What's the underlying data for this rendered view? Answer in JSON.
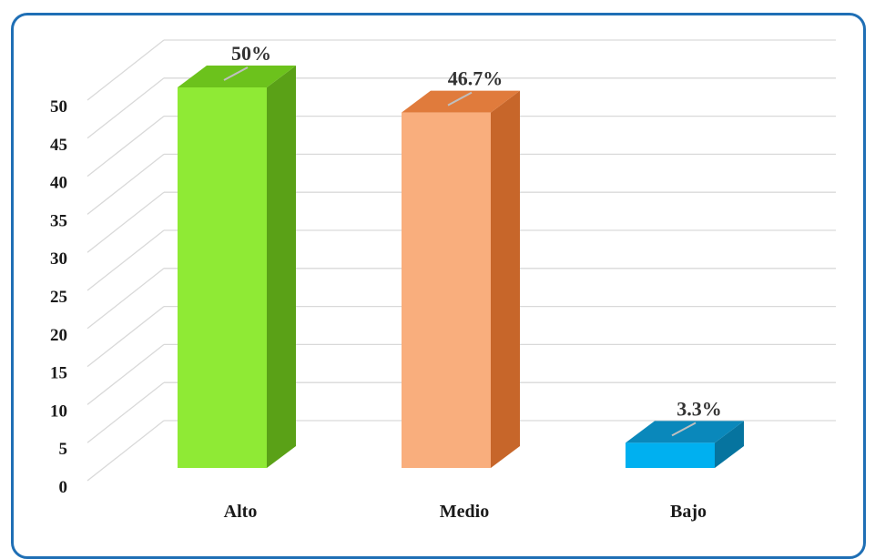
{
  "chart_data": {
    "type": "bar",
    "style": "3d-column",
    "categories": [
      "Alto",
      "Medio",
      "Bajo"
    ],
    "values": [
      50,
      46.7,
      3.3
    ],
    "data_labels": [
      "50%",
      "46.7%",
      "3.3%"
    ],
    "ylim": [
      0,
      50
    ],
    "yticks": [
      0,
      5,
      10,
      15,
      20,
      25,
      30,
      35,
      40,
      45,
      50
    ],
    "grid": true,
    "legend": "none",
    "title": "",
    "xlabel": "",
    "ylabel": "",
    "colors": [
      {
        "front": "#8fea35",
        "top": "#6cc21c",
        "side": "#5aa117"
      },
      {
        "front": "#f9ae7d",
        "top": "#e07b3c",
        "side": "#c7662a"
      },
      {
        "front": "#00b0f0",
        "top": "#0a88bb",
        "side": "#06749f"
      }
    ]
  },
  "frame_color": "#1f6fb5"
}
